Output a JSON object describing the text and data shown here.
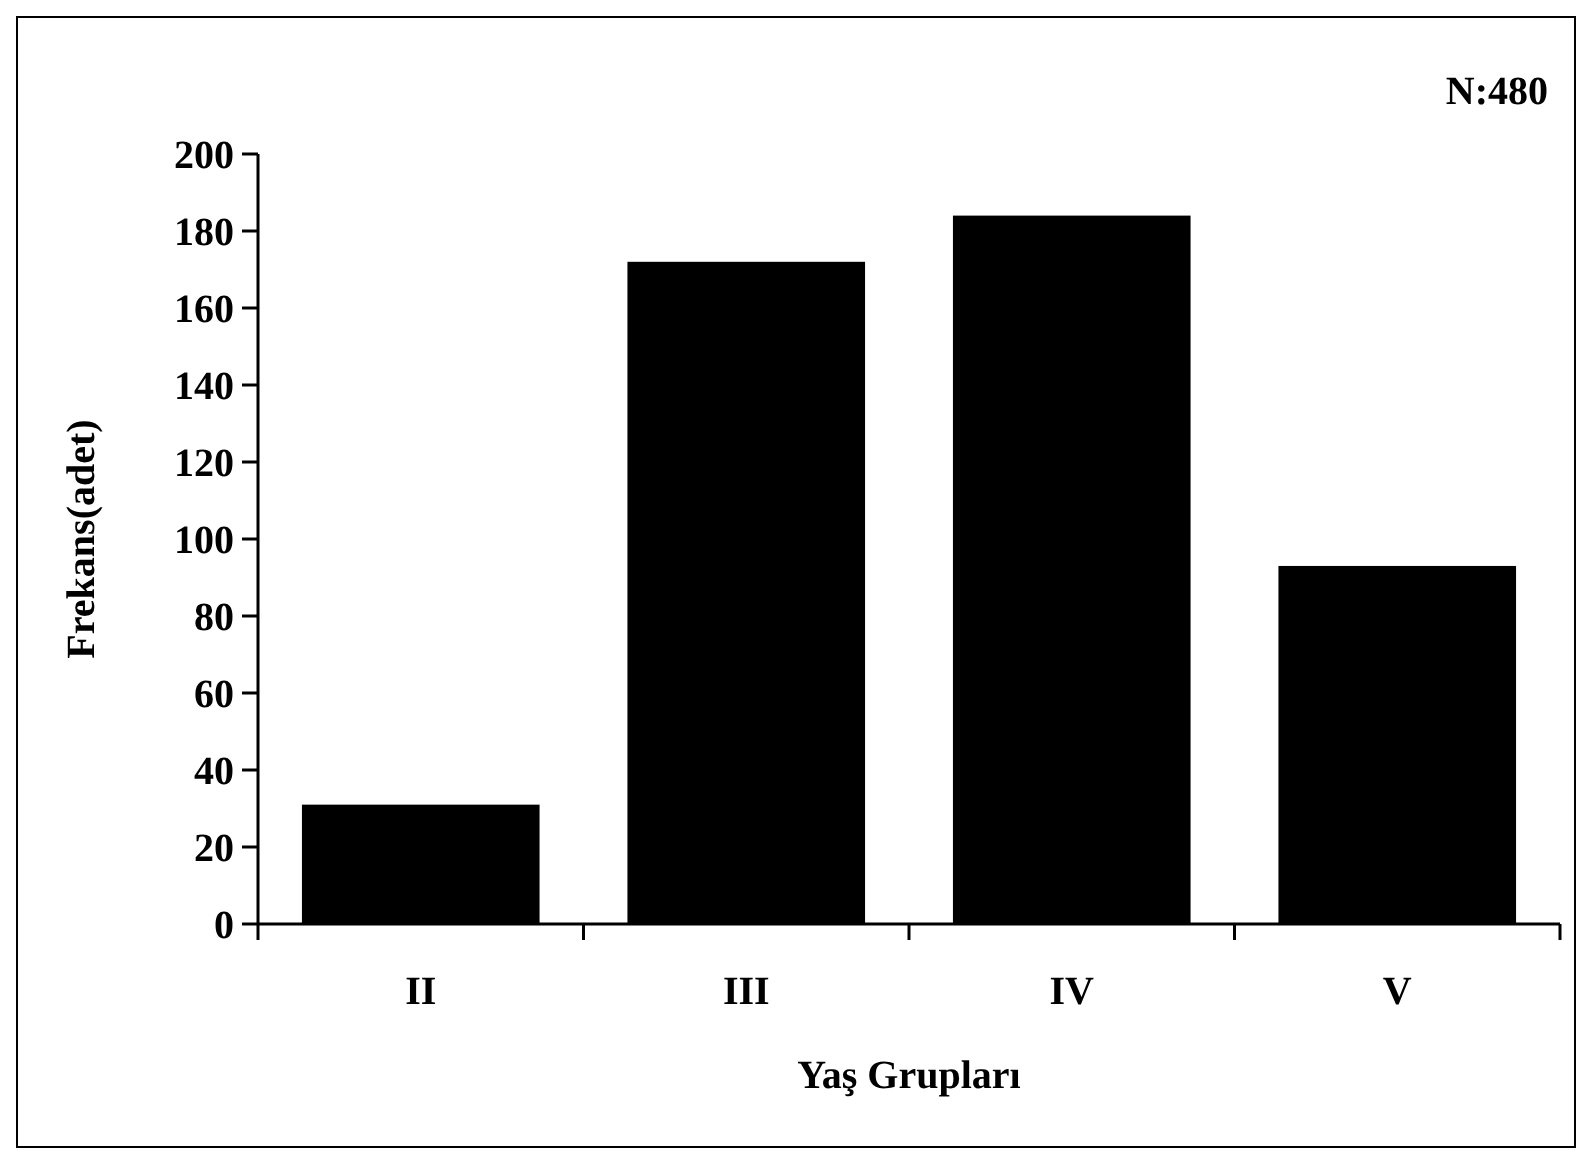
{
  "chart_data": {
    "type": "bar",
    "xlabel": "Yaş Grupları",
    "ylabel": "Frekans(adet)",
    "annotations": [
      "N:480"
    ],
    "categories": [
      "II",
      "III",
      "IV",
      "V"
    ],
    "values": [
      31,
      172,
      184,
      93
    ],
    "color": "#000000",
    "ylim": [
      0,
      200
    ],
    "yticks": [
      0,
      20,
      40,
      60,
      80,
      100,
      120,
      140,
      160,
      180,
      200
    ],
    "grid": false
  }
}
